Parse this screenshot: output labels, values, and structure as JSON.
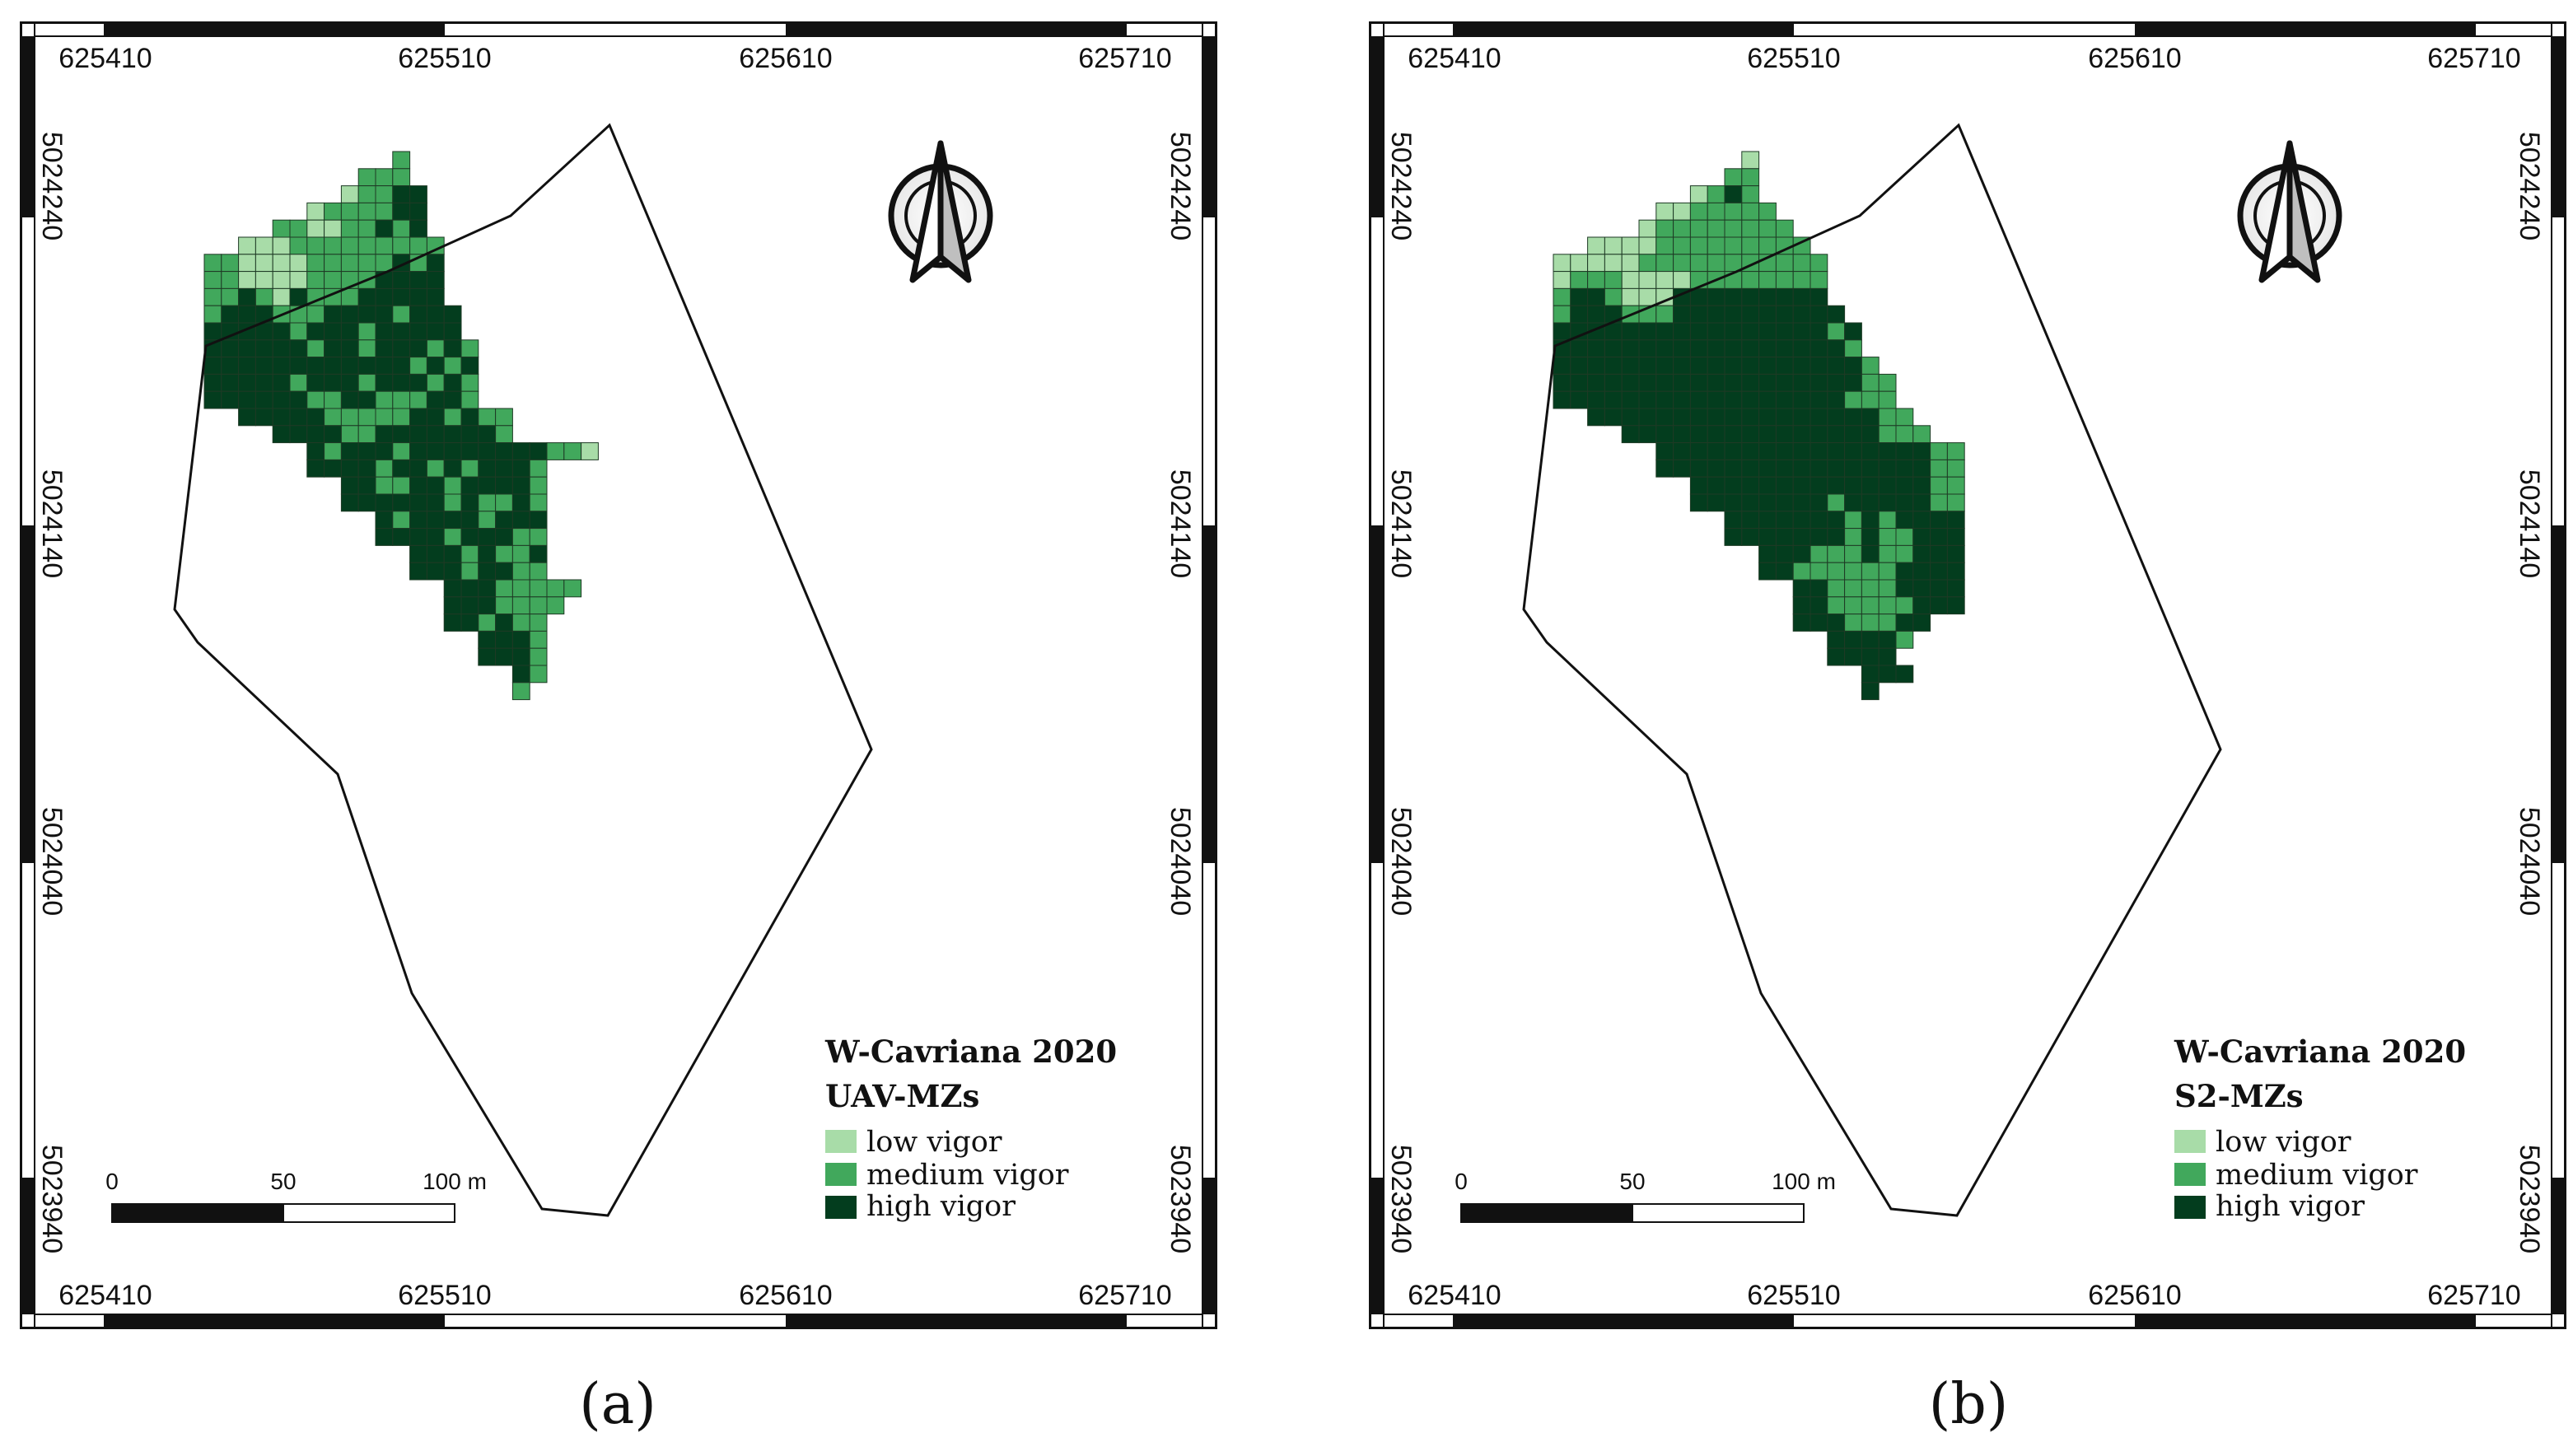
{
  "colors": {
    "low": "#a8dca8",
    "medium": "#41a85c",
    "high": "#033d1e",
    "grid_line": "#1e3a25",
    "frame": "#111111"
  },
  "legend": {
    "site": "W-Cavriana 2020",
    "items": [
      {
        "key": "low",
        "label": "low vigor"
      },
      {
        "key": "medium",
        "label": "medium vigor"
      },
      {
        "key": "high",
        "label": "high vigor"
      }
    ]
  },
  "scale_bar": {
    "labels": [
      "0",
      "50",
      "100 m"
    ]
  },
  "icons": {
    "north_arrow": "north-arrow-icon"
  },
  "panels": [
    {
      "id": "a",
      "caption": "(a)",
      "subtitle": "UAV-MZs",
      "x_labels": [
        "625410",
        "625510",
        "625610",
        "625710"
      ],
      "y_labels": [
        "5024240",
        "5024140",
        "5024040",
        "5023940"
      ],
      "zones": [
        "...........M........",
        ".........MMM........",
        "........LMMHH.......",
        "......LMMMMHH.......",
        "....MMLLMMHMH.......",
        "..LLLMMMMMMMMM......",
        "MMLLLLMMMMMHMH......",
        "MMLLLLMMMMHHHH......",
        "MMHMLHMMMHHHHH......",
        "MHHHMMMHHHHMHHH.....",
        "HHHHHMHHHMHHHHH.....",
        "HHHHHHMHHMHHHMHM....",
        "HHHHHHHHHHHHMHMH....",
        "HHHHHMHHHMHHHMHM....",
        "HHHHHHMMHHMMMHHM....",
        "..HHHHHMMMMMHHMHMM..",
        "....HHHHMMHHHHHHHM..",
        "......HMHHHMHHHHHHHHMML",
        "......HHHHMHHMHMHHHM....",
        "........HHMMHHMHHHHM....",
        "........HHHHHHMHMMHM....",
        "..........HMHHHHMHHH....",
        "..........HHHHMHHHMM....",
        "............HHHMHMMH....",
        "............HHHMHHMM....",
        "..............HHHMMMMM..",
        "..............HHHMMMM...",
        "..............HHMHMM....",
        "................HHHM....",
        "................HHHM....",
        "..................HM....",
        "..................M....."
      ]
    },
    {
      "id": "b",
      "caption": "(b)",
      "subtitle": "S2-MZs",
      "x_labels": [
        "625410",
        "625510",
        "625610",
        "625710"
      ],
      "y_labels": [
        "5024240",
        "5024140",
        "5024040",
        "5023940"
      ],
      "zones": [
        "...........L........",
        "..........MM........",
        "........LMHM........",
        "......LLMMMMM.......",
        ".....LMMMMMMMM......",
        "..LLLLMMMMMMMMM.....",
        "LLLLLMMMMMMMMMMM....",
        "LMMMLLLLMMMMMMMM....",
        "MHHMLLLHHHHHHHHH....",
        "MHHHMMMHHHHHHHHHH...",
        "HHHHHHHHHHHHHHHHMH..",
        "HHHHHHHHHHHHHHHHHM..",
        "HHHHHHHHHHHHHHHHHHM.",
        "HHHHHHHHHHHHHHHHHHMM",
        "HHHHHHHHHHHHHHHHHMMM",
        "..HHHHHHHHHHHHHHHHHMM",
        "....HHHHHHHHHHHHHHHMMM",
        "......HHHHHHHHHHHHHHHHMM",
        "......HHHHHHHHHHHHHHHHMM",
        "........HHHHHHHHHHHHHHMM",
        "........HHHHHHHHMHHHHHMM",
        "..........HHHHHHHMHMHHHH",
        "..........HHHHHHHMHMMHHH",
        "............HHHMMMHMMHHH",
        "............HHMMMMMMHHHH",
        "..............HHMMMMHHHH",
        "..............HHMMMMMHHH",
        "..............HHHMMMHH..",
        "................HHHHM...",
        "................HHHH....",
        "..................HHH...",
        "..................H....."
      ]
    }
  ]
}
